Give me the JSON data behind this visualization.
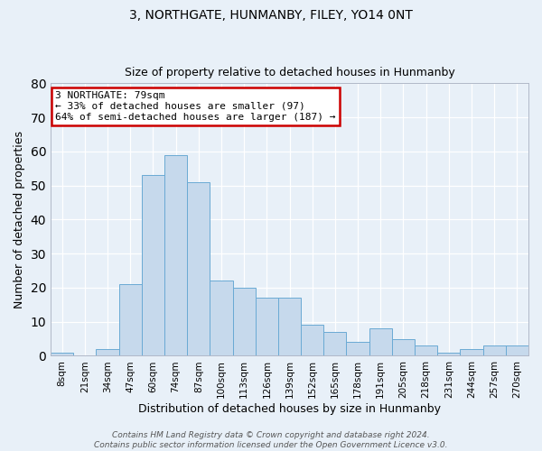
{
  "title1": "3, NORTHGATE, HUNMANBY, FILEY, YO14 0NT",
  "title2": "Size of property relative to detached houses in Hunmanby",
  "xlabel": "Distribution of detached houses by size in Hunmanby",
  "ylabel": "Number of detached properties",
  "bar_values": [
    1,
    0,
    2,
    21,
    53,
    59,
    51,
    22,
    20,
    17,
    17,
    9,
    7,
    4,
    8,
    5,
    3,
    1,
    2,
    3,
    3
  ],
  "categories": [
    "8sqm",
    "21sqm",
    "34sqm",
    "47sqm",
    "60sqm",
    "74sqm",
    "87sqm",
    "100sqm",
    "113sqm",
    "126sqm",
    "139sqm",
    "152sqm",
    "165sqm",
    "178sqm",
    "191sqm",
    "205sqm",
    "218sqm",
    "231sqm",
    "244sqm",
    "257sqm",
    "270sqm"
  ],
  "bar_color": "#c6d9ec",
  "bar_edge_color": "#6aaad4",
  "bg_color": "#e8f0f8",
  "annotation_text": "3 NORTHGATE: 79sqm\n← 33% of detached houses are smaller (97)\n64% of semi-detached houses are larger (187) →",
  "annotation_box_color": "#ffffff",
  "annotation_box_edge_color": "#cc0000",
  "ylim": [
    0,
    80
  ],
  "yticks": [
    0,
    10,
    20,
    30,
    40,
    50,
    60,
    70,
    80
  ],
  "footer": "Contains HM Land Registry data © Crown copyright and database right 2024.\nContains public sector information licensed under the Open Government Licence v3.0.",
  "title1_fontsize": 10,
  "title2_fontsize": 9,
  "ylabel_fontsize": 9,
  "xlabel_fontsize": 9
}
